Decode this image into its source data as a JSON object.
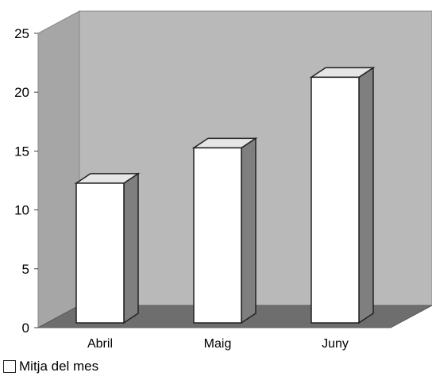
{
  "chart_data": {
    "type": "bar",
    "title": "",
    "xlabel": "",
    "ylabel": "",
    "categories": [
      "Abril",
      "Maig",
      "Juny"
    ],
    "series": [
      {
        "name": "Mitja del mes",
        "values": [
          12,
          15,
          21
        ]
      }
    ],
    "ylim": [
      0,
      25
    ],
    "yticks": [
      "0",
      "5",
      "10",
      "15",
      "20",
      "25"
    ],
    "grid": false,
    "three_d": true,
    "legend_position": "bottom-left",
    "colors": {
      "wall": "#b9b9b9",
      "side_wall": "#a6a6a6",
      "floor": "#6e6e6e",
      "bar_front": "#ffffff",
      "bar_side": "#7f7f7f",
      "bar_top": "#e6e6e6",
      "outline": "#222222"
    }
  },
  "legend": {
    "label": "Mitja del mes"
  }
}
